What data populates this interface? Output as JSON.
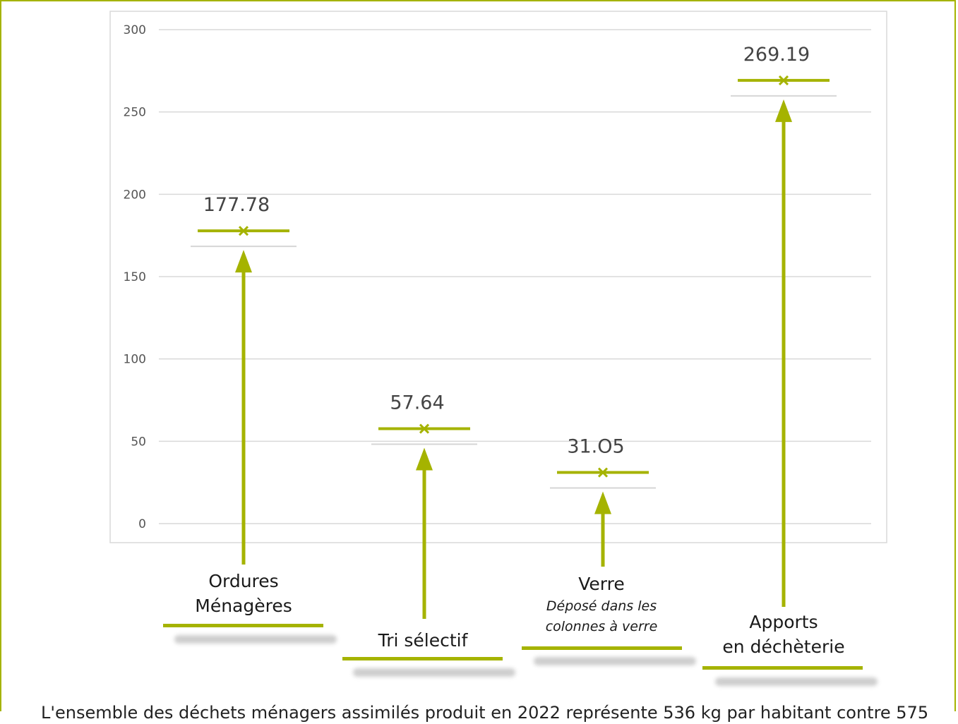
{
  "colors": {
    "accent": "#a5b300",
    "grid": "#d9d9d9",
    "tick": "#555555"
  },
  "chart_data": {
    "type": "scatter",
    "categories": [
      "Ordures Ménagères",
      "Tri sélectif",
      "Verre",
      "Apports en déchèterie"
    ],
    "values": [
      177.78,
      57.64,
      31.05,
      269.19
    ],
    "value_labels": [
      "177.78",
      "57.64",
      "31.O5",
      "269.19"
    ],
    "yticks": [
      "300",
      "250",
      "200",
      "150",
      "100",
      "50",
      "0"
    ],
    "ylim": [
      0,
      300
    ],
    "grid": true,
    "marker": "x"
  },
  "labels": {
    "cat1": [
      "Ordures",
      "Ménagères"
    ],
    "cat2": "Tri sélectif",
    "cat3": {
      "title": "Verre",
      "sub1": "Déposé dans les",
      "sub2": "colonnes à verre"
    },
    "cat4": [
      "Apports",
      "en déchèterie"
    ]
  },
  "footnote": "L'ensemble des déchets ménagers assimilés produit en 2022 représente 536 kg par habitant contre 575"
}
